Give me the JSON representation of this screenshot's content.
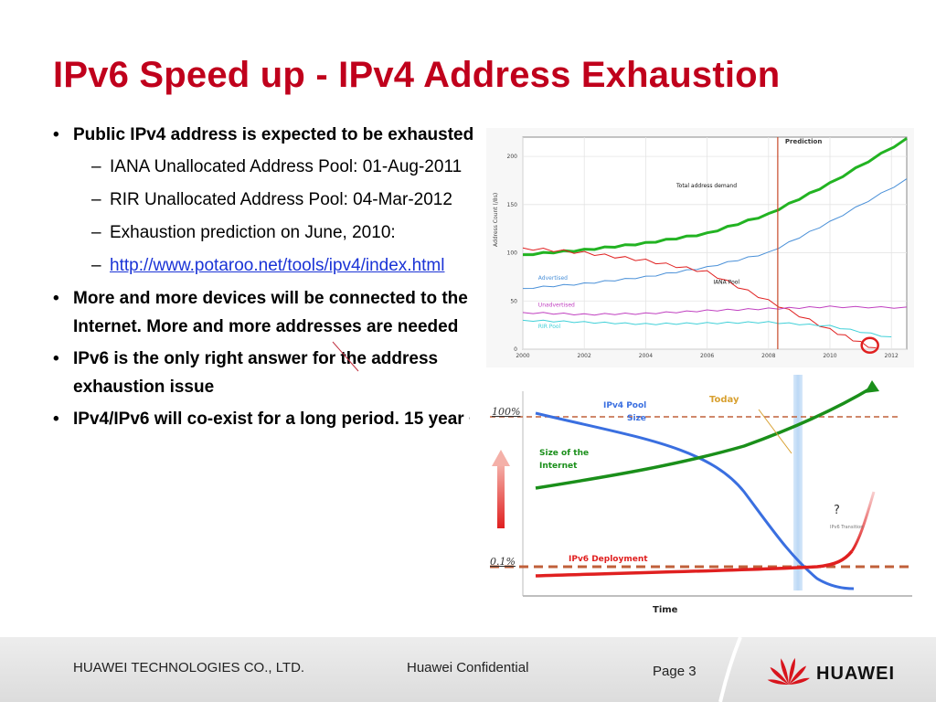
{
  "title": "IPv6 Speed up - IPv4 Address Exhaustion",
  "bullets": {
    "b1": "Public IPv4 address is expected to be exhausted",
    "sub1": "IANA Unallocated Address Pool: 01-Aug-2011",
    "sub2": "RIR Unallocated Address Pool: 04-Mar-2012",
    "sub3": "Exhaustion prediction on June,  2010:",
    "sub4_link": "http://www.potaroo.net/tools/ipv4/index.html",
    "b2": "More and more devices will be connected to the Internet. More and more addresses are needed",
    "b3": "IPv6 is the only right answer for the address exhaustion issue",
    "b4": "IPv4/IPv6 will co-exist for a long period. 15 year +"
  },
  "chart_data": [
    {
      "type": "line",
      "ylabel": "Address Count (/8s)",
      "x_ticks": [
        "2000",
        "2002",
        "2004",
        "2006",
        "2008",
        "2010",
        "2012"
      ],
      "y_ticks": [
        "0",
        "50",
        "100",
        "150",
        "200"
      ],
      "xlim": [
        2000,
        2012.5
      ],
      "ylim": [
        0,
        220
      ],
      "prediction_label": "Prediction",
      "prediction_x": 2008.3,
      "series": [
        {
          "name": "Total address demand",
          "color": "#22b322",
          "x": [
            2000,
            2002,
            2004,
            2006,
            2008,
            2010,
            2012.5
          ],
          "values": [
            98,
            103,
            110,
            120,
            140,
            172,
            218
          ]
        },
        {
          "name": "Advertised",
          "color": "#4a90d8",
          "x": [
            2000,
            2002,
            2004,
            2006,
            2008,
            2010,
            2012.5
          ],
          "values": [
            63,
            68,
            75,
            85,
            100,
            132,
            176
          ]
        },
        {
          "name": "IANA Pool",
          "color": "#e02020",
          "x": [
            2000,
            2002,
            2004,
            2006,
            2008,
            2010,
            2011.5
          ],
          "values": [
            105,
            100,
            92,
            80,
            50,
            20,
            0
          ]
        },
        {
          "name": "Unadvertised",
          "color": "#c040c0",
          "x": [
            2000,
            2002,
            2004,
            2006,
            2008,
            2010,
            2012.5
          ],
          "values": [
            38,
            36,
            37,
            40,
            42,
            44,
            43
          ]
        },
        {
          "name": "RIR Pool",
          "color": "#40d0d8",
          "x": [
            2000,
            2002,
            2004,
            2006,
            2008,
            2010,
            2012
          ],
          "values": [
            30,
            28,
            26,
            27,
            28,
            24,
            12
          ]
        }
      ],
      "colors": {
        "prediction_line": "#c84a2a",
        "circle": "#e02020"
      }
    },
    {
      "type": "line",
      "xlabel": "Time",
      "y_ticks": [
        "100%",
        "0.1%"
      ],
      "annotations": {
        "today": "Today",
        "question": "?",
        "ipv6_transition": "IPv6 Transition"
      },
      "series": [
        {
          "name": "IPv4 Pool Size",
          "color": "#3a6fe0",
          "values": [
            100,
            95,
            85,
            70,
            45,
            10,
            0
          ]
        },
        {
          "name": "Size of the Internet",
          "color": "#1a8f1a",
          "values": [
            20,
            30,
            42,
            58,
            80,
            110,
            125
          ]
        },
        {
          "name": "IPv6 Deployment",
          "color": "#e02020",
          "values": [
            2,
            3,
            4,
            5,
            6,
            8,
            60
          ]
        }
      ]
    }
  ],
  "footer": {
    "company": "HUAWEI TECHNOLOGIES CO., LTD.",
    "confidential": "Huawei Confidential",
    "page": "Page 3",
    "brand": "HUAWEI"
  }
}
